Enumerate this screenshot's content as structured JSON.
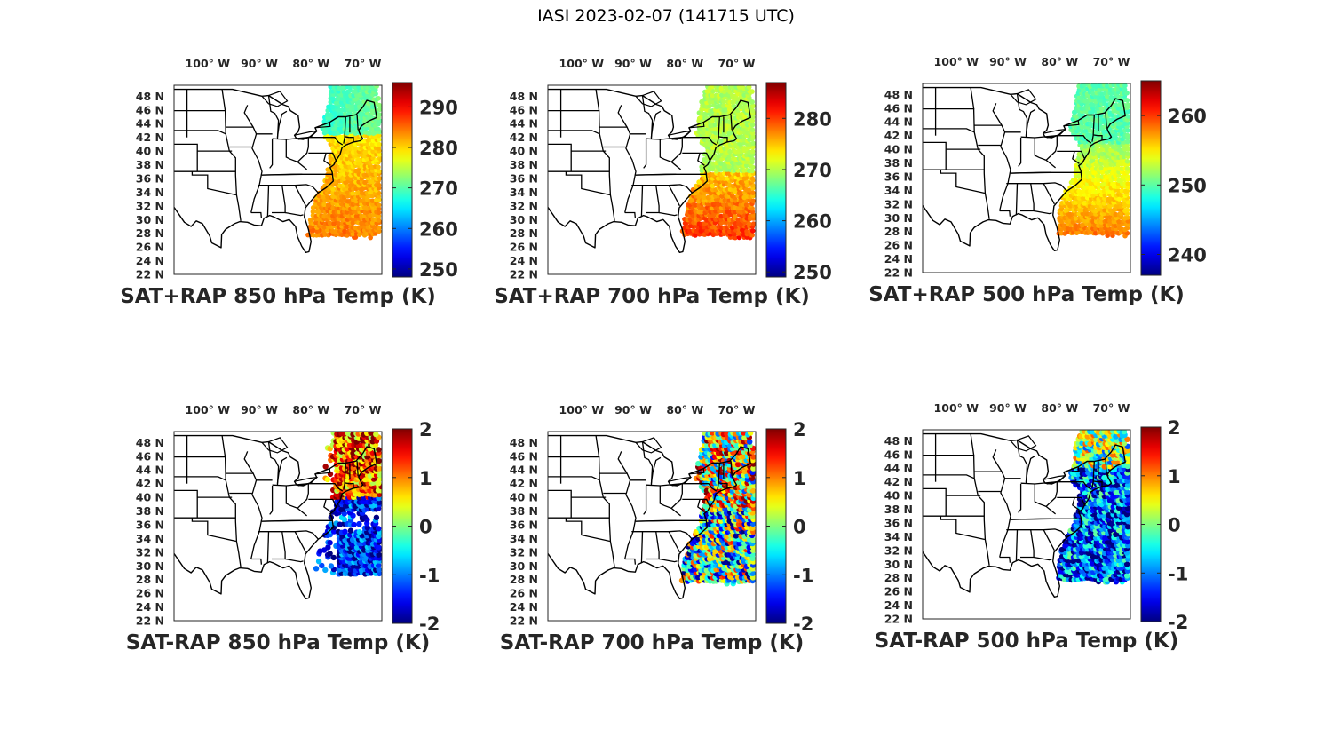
{
  "title": "IASI 2023-02-07 (141715 UTC)",
  "lon_ticks": [
    "100° W",
    "90° W",
    "80° W",
    "70° W"
  ],
  "lat_ticks": [
    "22 N",
    "24 N",
    "26 N",
    "28 N",
    "30 N",
    "32 N",
    "34 N",
    "36 N",
    "38 N",
    "40 N",
    "42 N",
    "44 N",
    "46 N",
    "48 N"
  ],
  "colormap": "jet",
  "panels": [
    {
      "title": "SAT+RAP 850 hPa Temp (K)",
      "kind": "full",
      "clim": [
        248,
        296
      ],
      "colorbar_ticks": [
        250,
        260,
        270,
        280,
        290
      ]
    },
    {
      "title": "SAT+RAP 700 hPa Temp (K)",
      "kind": "full",
      "clim": [
        249,
        287
      ],
      "colorbar_ticks": [
        250,
        260,
        270,
        280
      ]
    },
    {
      "title": "SAT+RAP 500 hPa Temp (K)",
      "kind": "full",
      "clim": [
        237,
        265
      ],
      "colorbar_ticks": [
        240,
        250,
        260
      ]
    },
    {
      "title": "SAT-RAP 850 hPa Temp (K)",
      "kind": "diff",
      "clim": [
        -2,
        2
      ],
      "colorbar_ticks": [
        -2,
        -1,
        0,
        1,
        2
      ]
    },
    {
      "title": "SAT-RAP 700 hPa Temp (K)",
      "kind": "diff",
      "clim": [
        -2,
        2
      ],
      "colorbar_ticks": [
        -2,
        -1,
        0,
        1,
        2
      ]
    },
    {
      "title": "SAT-RAP 500 hPa Temp (K)",
      "kind": "diff",
      "clim": [
        -2,
        2
      ],
      "colorbar_ticks": [
        -2,
        -1,
        0,
        1,
        2
      ]
    }
  ]
}
